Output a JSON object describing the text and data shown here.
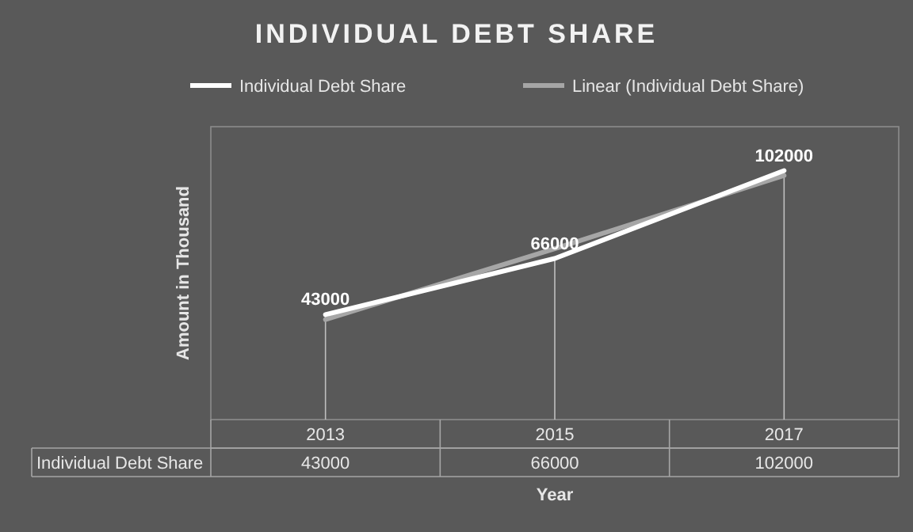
{
  "chart_data": {
    "type": "line",
    "title": "INDIVIDUAL DEBT SHARE",
    "xlabel": "Year",
    "ylabel": "Amount in Thousand",
    "categories": [
      "2013",
      "2015",
      "2017"
    ],
    "series": [
      {
        "name": "Individual Debt Share",
        "color": "#ffffff",
        "values": [
          43000,
          66000,
          102000
        ],
        "value_labels": [
          "43000",
          "66000",
          "102000"
        ]
      },
      {
        "name": "Linear (Individual Debt Share)",
        "color": "#a6a6a6",
        "values": [
          41000,
          70000,
          100000
        ]
      }
    ],
    "ylim": [
      0,
      120000
    ],
    "tick_labels": "x",
    "legend": "top",
    "grid": "x",
    "marker": "none",
    "line_style": "solid"
  }
}
